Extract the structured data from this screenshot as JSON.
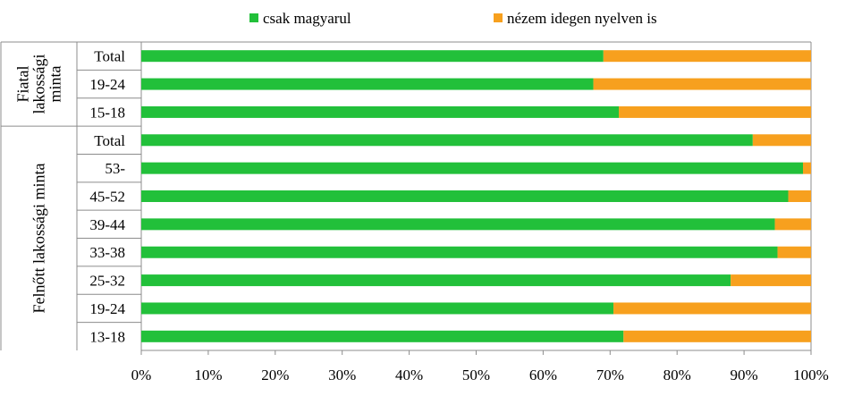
{
  "chart_data": {
    "type": "bar",
    "orientation": "horizontal",
    "stacked": "percent",
    "series": [
      {
        "name": "csak magyarul",
        "color": "#22c03a",
        "values": [
          69,
          67.5,
          71.3,
          91.3,
          98.8,
          96.6,
          94.6,
          95,
          88,
          70.5,
          72
        ]
      },
      {
        "name": "nézem idegen nyelven is",
        "color": "#f7a01e",
        "values": [
          31,
          32.5,
          28.7,
          8.7,
          1.2,
          3.4,
          5.4,
          5,
          12,
          29.5,
          28
        ]
      }
    ],
    "categories": [
      "Total",
      "19-24",
      "15-18",
      "Total",
      "53-",
      "45-52",
      "39-44",
      "33-38",
      "25-32",
      "19-24",
      "13-18"
    ],
    "groups": [
      {
        "label": "Fiatal lakossági minta",
        "start": 0,
        "end": 2
      },
      {
        "label": "Felnőtt lakossági minta",
        "start": 3,
        "end": 10
      }
    ],
    "x_ticks": [
      "0%",
      "10%",
      "20%",
      "30%",
      "40%",
      "50%",
      "60%",
      "70%",
      "80%",
      "90%",
      "100%"
    ],
    "xlim": [
      0,
      100
    ],
    "grid": false,
    "legend_position": "top"
  }
}
